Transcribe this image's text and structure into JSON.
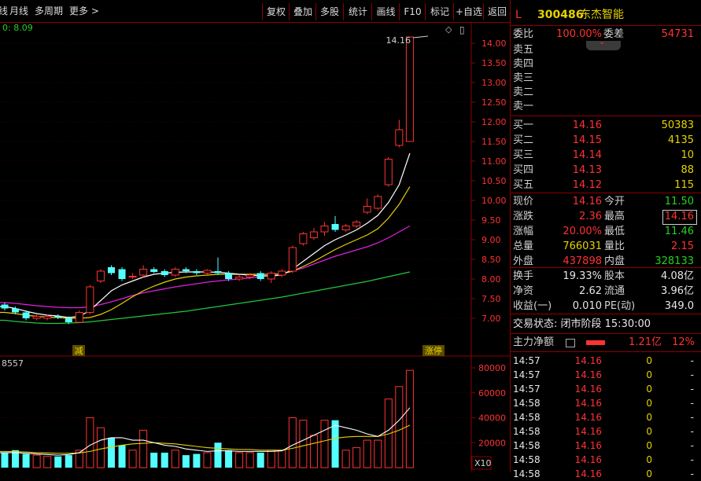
{
  "toolbar": {
    "left_items": [
      "日线",
      "月线",
      "多周期",
      "更多 >"
    ],
    "buttons": [
      "复权",
      "叠加",
      "多股",
      "统计",
      "画线",
      "F10",
      "标记",
      "+自选",
      "返回"
    ]
  },
  "chart": {
    "ma_readout": "0: 8.09",
    "high_label": "14.16",
    "price_axis": [
      "14.00",
      "13.50",
      "13.00",
      "12.50",
      "12.00",
      "11.50",
      "11.00",
      "10.50",
      "10.00",
      "9.50",
      "9.00",
      "8.50",
      "8.00",
      "7.50",
      "7.00"
    ],
    "badge_reduce": "减",
    "badge_limit": "涨停",
    "volume_readout": "8557",
    "volume_axis": [
      "80000",
      "60000",
      "40000",
      "20000"
    ],
    "volume_unit": "X10"
  },
  "chart_data": {
    "type": "candlestick",
    "price_range": [
      6.8,
      14.2
    ],
    "candles": [
      {
        "o": 7.35,
        "c": 7.25,
        "h": 7.4,
        "l": 7.2
      },
      {
        "o": 7.25,
        "c": 7.15,
        "h": 7.3,
        "l": 7.1
      },
      {
        "o": 7.15,
        "c": 7.0,
        "h": 7.2,
        "l": 6.95
      },
      {
        "o": 7.0,
        "c": 7.05,
        "h": 7.1,
        "l": 6.95
      },
      {
        "o": 7.0,
        "c": 7.05,
        "h": 7.1,
        "l": 6.95
      },
      {
        "o": 7.05,
        "c": 7.02,
        "h": 7.1,
        "l": 6.98
      },
      {
        "o": 7.0,
        "c": 6.9,
        "h": 7.05,
        "l": 6.85
      },
      {
        "o": 6.9,
        "c": 7.15,
        "h": 7.2,
        "l": 6.9
      },
      {
        "o": 7.15,
        "c": 7.8,
        "h": 7.85,
        "l": 7.1
      },
      {
        "o": 7.95,
        "c": 8.2,
        "h": 8.25,
        "l": 7.9
      },
      {
        "o": 8.3,
        "c": 8.15,
        "h": 8.35,
        "l": 8.1
      },
      {
        "o": 8.25,
        "c": 8.0,
        "h": 8.3,
        "l": 7.95
      },
      {
        "o": 8.05,
        "c": 8.07,
        "h": 8.15,
        "l": 8.0
      },
      {
        "o": 8.1,
        "c": 8.25,
        "h": 8.35,
        "l": 8.05
      },
      {
        "o": 8.25,
        "c": 8.18,
        "h": 8.3,
        "l": 8.15
      },
      {
        "o": 8.2,
        "c": 8.1,
        "h": 8.25,
        "l": 8.05
      },
      {
        "o": 8.1,
        "c": 8.25,
        "h": 8.3,
        "l": 8.05
      },
      {
        "o": 8.25,
        "c": 8.2,
        "h": 8.3,
        "l": 8.15
      },
      {
        "o": 8.2,
        "c": 8.15,
        "h": 8.25,
        "l": 8.1
      },
      {
        "o": 8.15,
        "c": 8.22,
        "h": 8.25,
        "l": 8.1
      },
      {
        "o": 8.2,
        "c": 8.15,
        "h": 8.55,
        "l": 8.1
      },
      {
        "o": 8.15,
        "c": 8.0,
        "h": 8.2,
        "l": 7.95
      },
      {
        "o": 8.0,
        "c": 8.05,
        "h": 8.1,
        "l": 7.95
      },
      {
        "o": 8.05,
        "c": 8.1,
        "h": 8.15,
        "l": 8.0
      },
      {
        "o": 8.15,
        "c": 8.0,
        "h": 8.2,
        "l": 7.95
      },
      {
        "o": 8.0,
        "c": 8.15,
        "h": 8.2,
        "l": 7.9
      },
      {
        "o": 8.1,
        "c": 8.2,
        "h": 8.25,
        "l": 8.05
      },
      {
        "o": 8.2,
        "c": 8.8,
        "h": 8.85,
        "l": 8.15
      },
      {
        "o": 8.9,
        "c": 9.15,
        "h": 9.2,
        "l": 8.85
      },
      {
        "o": 9.05,
        "c": 9.2,
        "h": 9.3,
        "l": 9.0
      },
      {
        "o": 9.2,
        "c": 9.35,
        "h": 9.45,
        "l": 9.1
      },
      {
        "o": 9.4,
        "c": 9.25,
        "h": 9.6,
        "l": 9.2
      },
      {
        "o": 9.25,
        "c": 9.35,
        "h": 9.4,
        "l": 9.2
      },
      {
        "o": 9.35,
        "c": 9.45,
        "h": 9.5,
        "l": 9.3
      },
      {
        "o": 9.7,
        "c": 9.85,
        "h": 10.05,
        "l": 9.65
      },
      {
        "o": 9.8,
        "c": 10.1,
        "h": 10.15,
        "l": 9.75
      },
      {
        "o": 10.4,
        "c": 11.05,
        "h": 11.1,
        "l": 10.35
      },
      {
        "o": 11.4,
        "c": 11.8,
        "h": 12.05,
        "l": 11.35
      },
      {
        "o": 11.5,
        "c": 14.16,
        "h": 14.16,
        "l": 11.5
      }
    ],
    "ma_white": [
      7.3,
      7.25,
      7.18,
      7.12,
      7.08,
      7.06,
      7.02,
      7.05,
      7.2,
      7.45,
      7.7,
      7.85,
      7.95,
      8.05,
      8.12,
      8.15,
      8.17,
      8.18,
      8.18,
      8.18,
      8.17,
      8.15,
      8.12,
      8.1,
      8.08,
      8.08,
      8.1,
      8.25,
      8.45,
      8.65,
      8.85,
      9.0,
      9.12,
      9.25,
      9.42,
      9.62,
      9.95,
      10.4,
      11.2
    ],
    "ma_yellow": [
      7.15,
      7.12,
      7.08,
      7.05,
      7.03,
      7.02,
      7.0,
      7.0,
      7.02,
      7.1,
      7.22,
      7.38,
      7.55,
      7.7,
      7.82,
      7.92,
      8.0,
      8.05,
      8.08,
      8.1,
      8.12,
      8.12,
      8.12,
      8.12,
      8.12,
      8.12,
      8.13,
      8.2,
      8.32,
      8.45,
      8.6,
      8.75,
      8.88,
      9.0,
      9.12,
      9.28,
      9.55,
      9.9,
      10.35
    ],
    "ma_magenta": [
      7.4,
      7.38,
      7.35,
      7.32,
      7.3,
      7.28,
      7.27,
      7.27,
      7.29,
      7.35,
      7.42,
      7.5,
      7.58,
      7.65,
      7.7,
      7.75,
      7.8,
      7.84,
      7.88,
      7.92,
      7.95,
      7.98,
      8.0,
      8.03,
      8.06,
      8.1,
      8.14,
      8.2,
      8.28,
      8.38,
      8.48,
      8.58,
      8.66,
      8.74,
      8.82,
      8.92,
      9.05,
      9.2,
      9.35
    ],
    "ma_green": [
      6.95,
      6.92,
      6.9,
      6.88,
      6.87,
      6.87,
      6.88,
      6.89,
      6.91,
      6.94,
      6.97,
      7.0,
      7.03,
      7.06,
      7.09,
      7.12,
      7.15,
      7.18,
      7.22,
      7.26,
      7.3,
      7.34,
      7.38,
      7.42,
      7.46,
      7.5,
      7.54,
      7.59,
      7.64,
      7.69,
      7.74,
      7.79,
      7.84,
      7.89,
      7.94,
      8.0,
      8.06,
      8.12,
      8.18
    ],
    "volume_range": [
      0,
      88000
    ],
    "volumes": [
      {
        "v": 12000,
        "up": false
      },
      {
        "v": 14000,
        "up": false
      },
      {
        "v": 11000,
        "up": false
      },
      {
        "v": 10000,
        "up": true
      },
      {
        "v": 9000,
        "up": true
      },
      {
        "v": 9000,
        "up": false
      },
      {
        "v": 10000,
        "up": false
      },
      {
        "v": 14000,
        "up": true
      },
      {
        "v": 40000,
        "up": true
      },
      {
        "v": 32000,
        "up": true
      },
      {
        "v": 24000,
        "up": false
      },
      {
        "v": 18000,
        "up": false
      },
      {
        "v": 14000,
        "up": true
      },
      {
        "v": 30000,
        "up": true
      },
      {
        "v": 12000,
        "up": false
      },
      {
        "v": 12000,
        "up": false
      },
      {
        "v": 14000,
        "up": true
      },
      {
        "v": 10000,
        "up": false
      },
      {
        "v": 11000,
        "up": false
      },
      {
        "v": 12000,
        "up": true
      },
      {
        "v": 20000,
        "up": false
      },
      {
        "v": 14000,
        "up": false
      },
      {
        "v": 12000,
        "up": true
      },
      {
        "v": 12000,
        "up": true
      },
      {
        "v": 12000,
        "up": false
      },
      {
        "v": 14000,
        "up": true
      },
      {
        "v": 14000,
        "up": true
      },
      {
        "v": 40000,
        "up": true
      },
      {
        "v": 38000,
        "up": true
      },
      {
        "v": 26000,
        "up": true
      },
      {
        "v": 38000,
        "up": true
      },
      {
        "v": 38000,
        "up": false
      },
      {
        "v": 14000,
        "up": true
      },
      {
        "v": 16000,
        "up": true
      },
      {
        "v": 22000,
        "up": true
      },
      {
        "v": 22000,
        "up": true
      },
      {
        "v": 55000,
        "up": true
      },
      {
        "v": 65000,
        "up": true
      },
      {
        "v": 78000,
        "up": true
      }
    ],
    "vol_ma_white": [
      12000,
      12000,
      11500,
      11000,
      10500,
      10000,
      10500,
      12000,
      18000,
      22000,
      24000,
      24000,
      22000,
      22000,
      20000,
      18000,
      17000,
      15000,
      14000,
      13000,
      13500,
      13500,
      13000,
      13000,
      13000,
      13000,
      13500,
      18000,
      22000,
      26000,
      30000,
      34000,
      32000,
      30000,
      27000,
      25000,
      30000,
      38000,
      48000
    ],
    "vol_ma_yellow": [
      13000,
      12800,
      12500,
      12000,
      11800,
      11500,
      11500,
      11800,
      13000,
      15000,
      16500,
      18000,
      19000,
      19500,
      20000,
      19500,
      19000,
      18000,
      17000,
      16000,
      15500,
      15000,
      14500,
      14500,
      14000,
      14000,
      14000,
      15500,
      17500,
      19500,
      21500,
      23500,
      24500,
      25000,
      25000,
      25000,
      27000,
      30000,
      34000
    ]
  },
  "panel": {
    "market_icon": "L",
    "code": "300486",
    "name": "东杰智能",
    "weibi_label": "委比",
    "weibi_value": "100.00%",
    "weicha_label": "委差",
    "weicha_value": "54731",
    "sell_labels": [
      "卖五",
      "卖四",
      "卖三",
      "卖二",
      "卖一"
    ],
    "buys": [
      {
        "label": "买一",
        "price": "14.16",
        "vol": "50383"
      },
      {
        "label": "买二",
        "price": "14.15",
        "vol": "4135"
      },
      {
        "label": "买三",
        "price": "14.14",
        "vol": "10"
      },
      {
        "label": "买四",
        "price": "14.13",
        "vol": "88"
      },
      {
        "label": "买五",
        "price": "14.12",
        "vol": "115"
      }
    ],
    "quote": [
      {
        "l1": "现价",
        "v1": "14.16",
        "c1": "red",
        "l2": "今开",
        "v2": "11.50",
        "c2": "grn"
      },
      {
        "l1": "涨跌",
        "v1": "2.36",
        "c1": "red",
        "l2": "最高",
        "v2": "14.16",
        "c2": "red"
      },
      {
        "l1": "涨幅",
        "v1": "20.00%",
        "c1": "red",
        "l2": "最低",
        "v2": "11.46",
        "c2": "grn"
      },
      {
        "l1": "总量",
        "v1": "766031",
        "c1": "yel",
        "l2": "量比",
        "v2": "2.15",
        "c2": "red"
      },
      {
        "l1": "外盘",
        "v1": "437898",
        "c1": "red",
        "l2": "内盘",
        "v2": "328133",
        "c2": "grn"
      }
    ],
    "stats": [
      {
        "l1": "换手",
        "v1": "19.33%",
        "l2": "股本",
        "v2": "4.08亿"
      },
      {
        "l1": "净资",
        "v1": "2.62",
        "l2": "流通",
        "v2": "3.96亿"
      },
      {
        "l1": "收益(一)",
        "v1": "0.010",
        "l2": "PE(动)",
        "v2": "349.0"
      }
    ],
    "trade_status": "交易状态: 闭市阶段 15:30:00",
    "main_net_label": "主力净额",
    "main_net_value": "1.21亿",
    "main_net_pct": "12%",
    "ticks": [
      {
        "t": "14:57",
        "p": "14.16",
        "v": "0",
        "s": "-"
      },
      {
        "t": "14:57",
        "p": "14.16",
        "v": "0",
        "s": "-"
      },
      {
        "t": "14:57",
        "p": "14.16",
        "v": "0",
        "s": "-"
      },
      {
        "t": "14:58",
        "p": "14.16",
        "v": "0",
        "s": "-"
      },
      {
        "t": "14:58",
        "p": "14.16",
        "v": "0",
        "s": "-"
      },
      {
        "t": "14:58",
        "p": "14.16",
        "v": "0",
        "s": "-"
      },
      {
        "t": "14:58",
        "p": "14.16",
        "v": "0",
        "s": "-"
      },
      {
        "t": "14:58",
        "p": "14.16",
        "v": "0",
        "s": "-"
      },
      {
        "t": "14:58",
        "p": "14.16",
        "v": "0",
        "s": "-"
      }
    ]
  }
}
